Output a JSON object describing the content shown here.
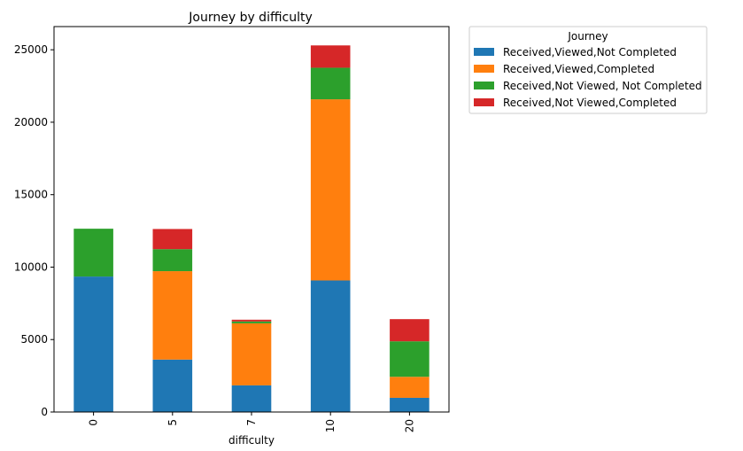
{
  "chart_data": {
    "type": "bar",
    "stacked": true,
    "title": "Journey by difficulty",
    "xlabel": "difficulty",
    "ylabel": "",
    "categories": [
      "0",
      "5",
      "7",
      "10",
      "20"
    ],
    "ylim": [
      0,
      26600
    ],
    "yticks": [
      0,
      5000,
      10000,
      15000,
      20000,
      25000
    ],
    "grid": false,
    "legend": {
      "title": "Journey",
      "placement": "outside-upper-right"
    },
    "series": [
      {
        "name": "Received,Viewed,Not Completed",
        "color": "#1f77b4",
        "values": [
          9350,
          3620,
          1840,
          9080,
          980
        ]
      },
      {
        "name": "Received,Viewed,Completed",
        "color": "#ff7f0e",
        "values": [
          0,
          6100,
          4280,
          12500,
          1450
        ]
      },
      {
        "name": "Received,Not Viewed, Not Completed",
        "color": "#2ca02c",
        "values": [
          3300,
          1520,
          130,
          2180,
          2450
        ]
      },
      {
        "name": "Received,Not Viewed,Completed",
        "color": "#d62728",
        "values": [
          0,
          1390,
          120,
          1540,
          1530
        ]
      }
    ]
  }
}
